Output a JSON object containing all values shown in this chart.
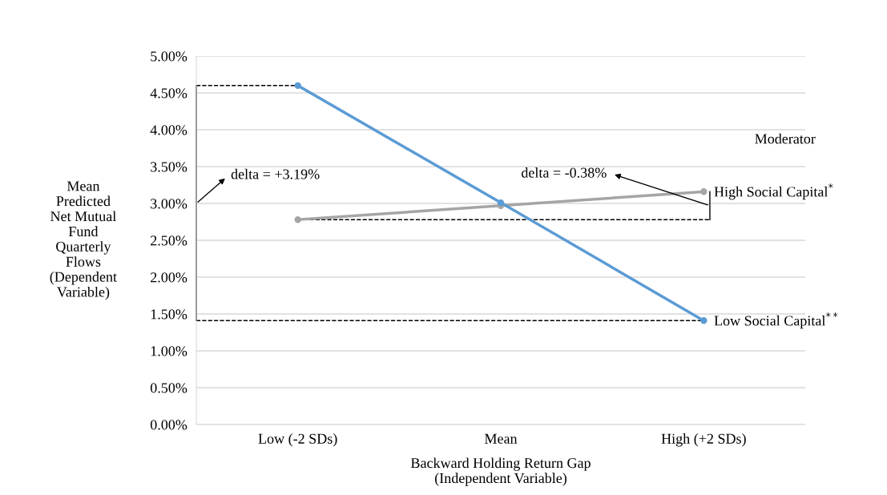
{
  "chart_data": {
    "type": "line",
    "categories": [
      "Low (-2 SDs)",
      "Mean",
      "High (+2 SDs)"
    ],
    "series": [
      {
        "name": "High Social Capital$^{*}$",
        "color": "#a5a5a5",
        "values": [
          2.78,
          2.97,
          3.16
        ]
      },
      {
        "name": "Low Social Capital$^{**}$",
        "color": "#5b9bd5",
        "values": [
          4.6,
          3.01,
          1.41
        ]
      }
    ],
    "ylabel": "Mean\nPredicted\nNet Mutual\nFund\nQuarterly\nFlows\n(Dependent\nVariable)",
    "xlabel": "Backward Holding Return Gap\n(Independent Variable)",
    "legend_title": "Moderator",
    "annotations": [
      "delta = +3.19%",
      "delta = -0.38%"
    ],
    "ylim": [
      0,
      5
    ],
    "yticks": [
      {
        "value": 0,
        "label": "0.00%"
      },
      {
        "value": 0.5,
        "label": "0.50%"
      },
      {
        "value": 1,
        "label": "1.00%"
      },
      {
        "value": 1.5,
        "label": "1.50%"
      },
      {
        "value": 2,
        "label": "2.00%"
      },
      {
        "value": 2.5,
        "label": "2.50%"
      },
      {
        "value": 3,
        "label": "3.00%"
      },
      {
        "value": 3.5,
        "label": "3.50%"
      },
      {
        "value": 4,
        "label": "4.00%"
      },
      {
        "value": 4.5,
        "label": "4.50%"
      },
      {
        "value": 5,
        "label": "5.00%"
      }
    ],
    "ref_lines": [
      {
        "axis": "y",
        "value": 4.6,
        "color": "#000000",
        "line_style": "dashed"
      },
      {
        "axis": "y",
        "value": 1.41,
        "color": "#000000",
        "line_style": "dashed"
      },
      {
        "axis": "y",
        "value": 2.78,
        "color": "#000000",
        "line_style": "dashed"
      }
    ],
    "grid": "y",
    "marker": "circle",
    "line_style": "solid"
  }
}
